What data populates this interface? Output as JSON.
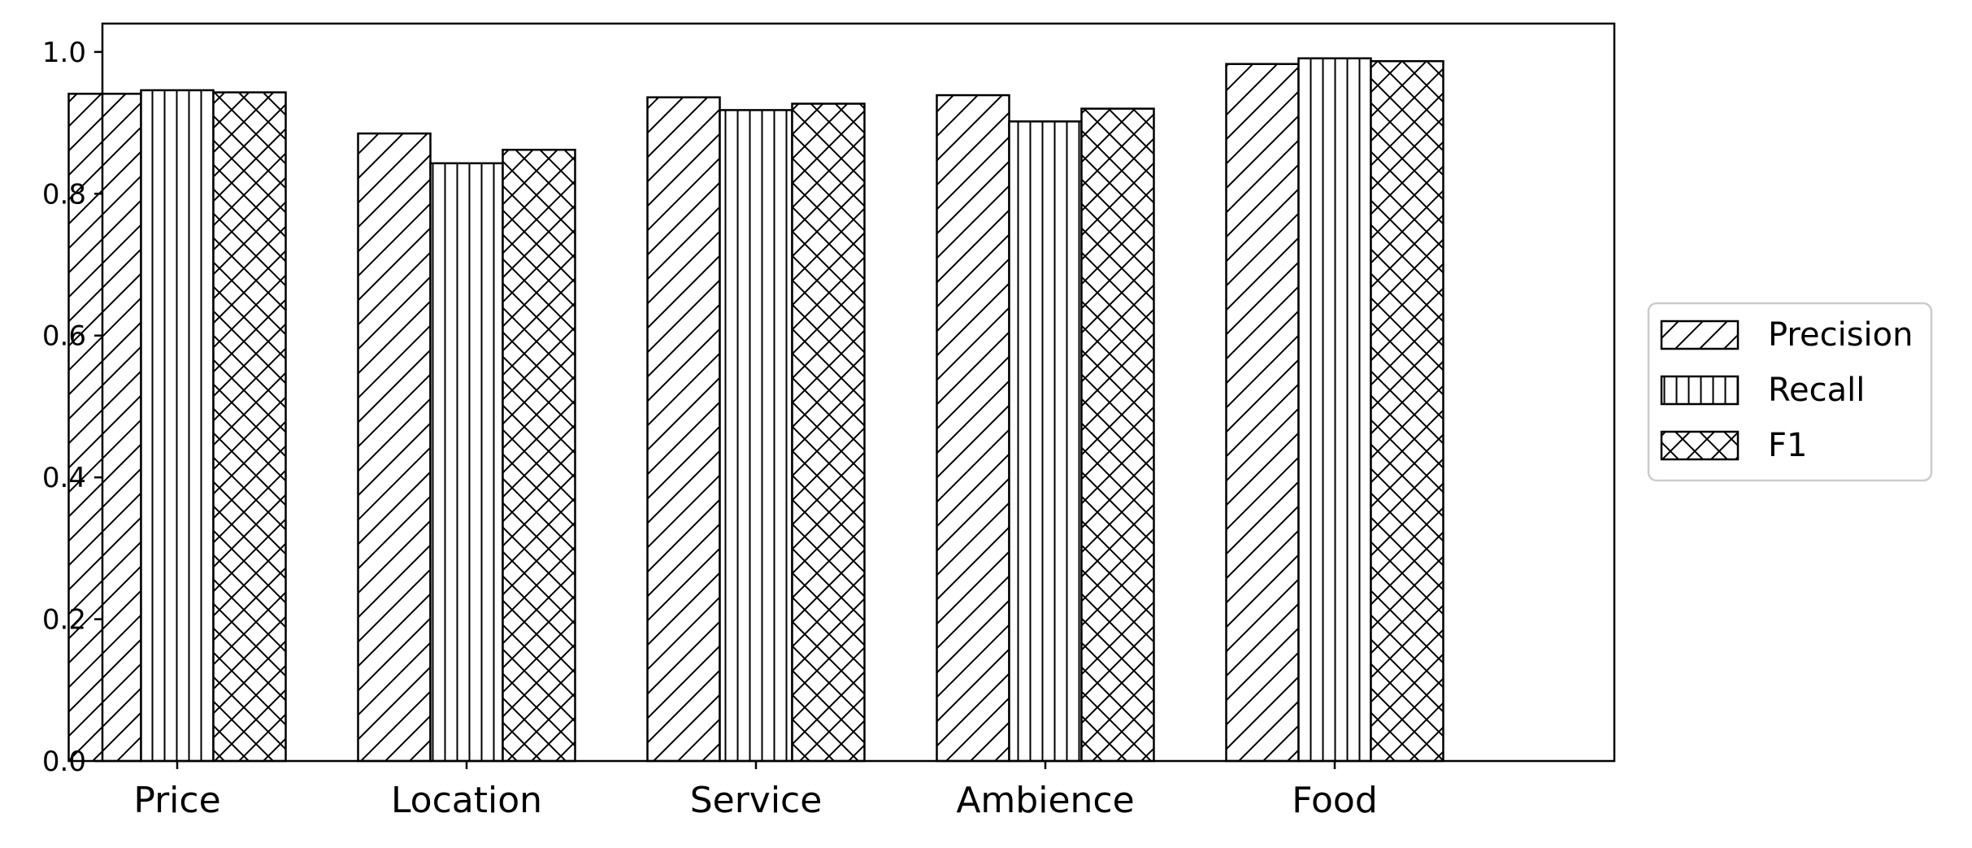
{
  "chart_data": {
    "type": "bar",
    "categories": [
      "Price",
      "Location",
      "Service",
      "Ambience",
      "Food"
    ],
    "series": [
      {
        "name": "Precision",
        "values": [
          0.941,
          0.885,
          0.936,
          0.939,
          0.983
        ],
        "hatch": "diagonal"
      },
      {
        "name": "Recall",
        "values": [
          0.946,
          0.843,
          0.918,
          0.902,
          0.991
        ],
        "hatch": "vertical"
      },
      {
        "name": "F1",
        "values": [
          0.943,
          0.862,
          0.927,
          0.92,
          0.987
        ],
        "hatch": "crosshatch"
      }
    ],
    "ylim": [
      0,
      1.04
    ],
    "yticks": [
      "0.0",
      "0.2",
      "0.4",
      "0.6",
      "0.8",
      "1.0"
    ],
    "title": "",
    "xlabel": "",
    "ylabel": "",
    "grid": false,
    "legend_position": "right-outside",
    "colors": {
      "bar_fill": "#ffffff",
      "edge": "#000000"
    }
  }
}
